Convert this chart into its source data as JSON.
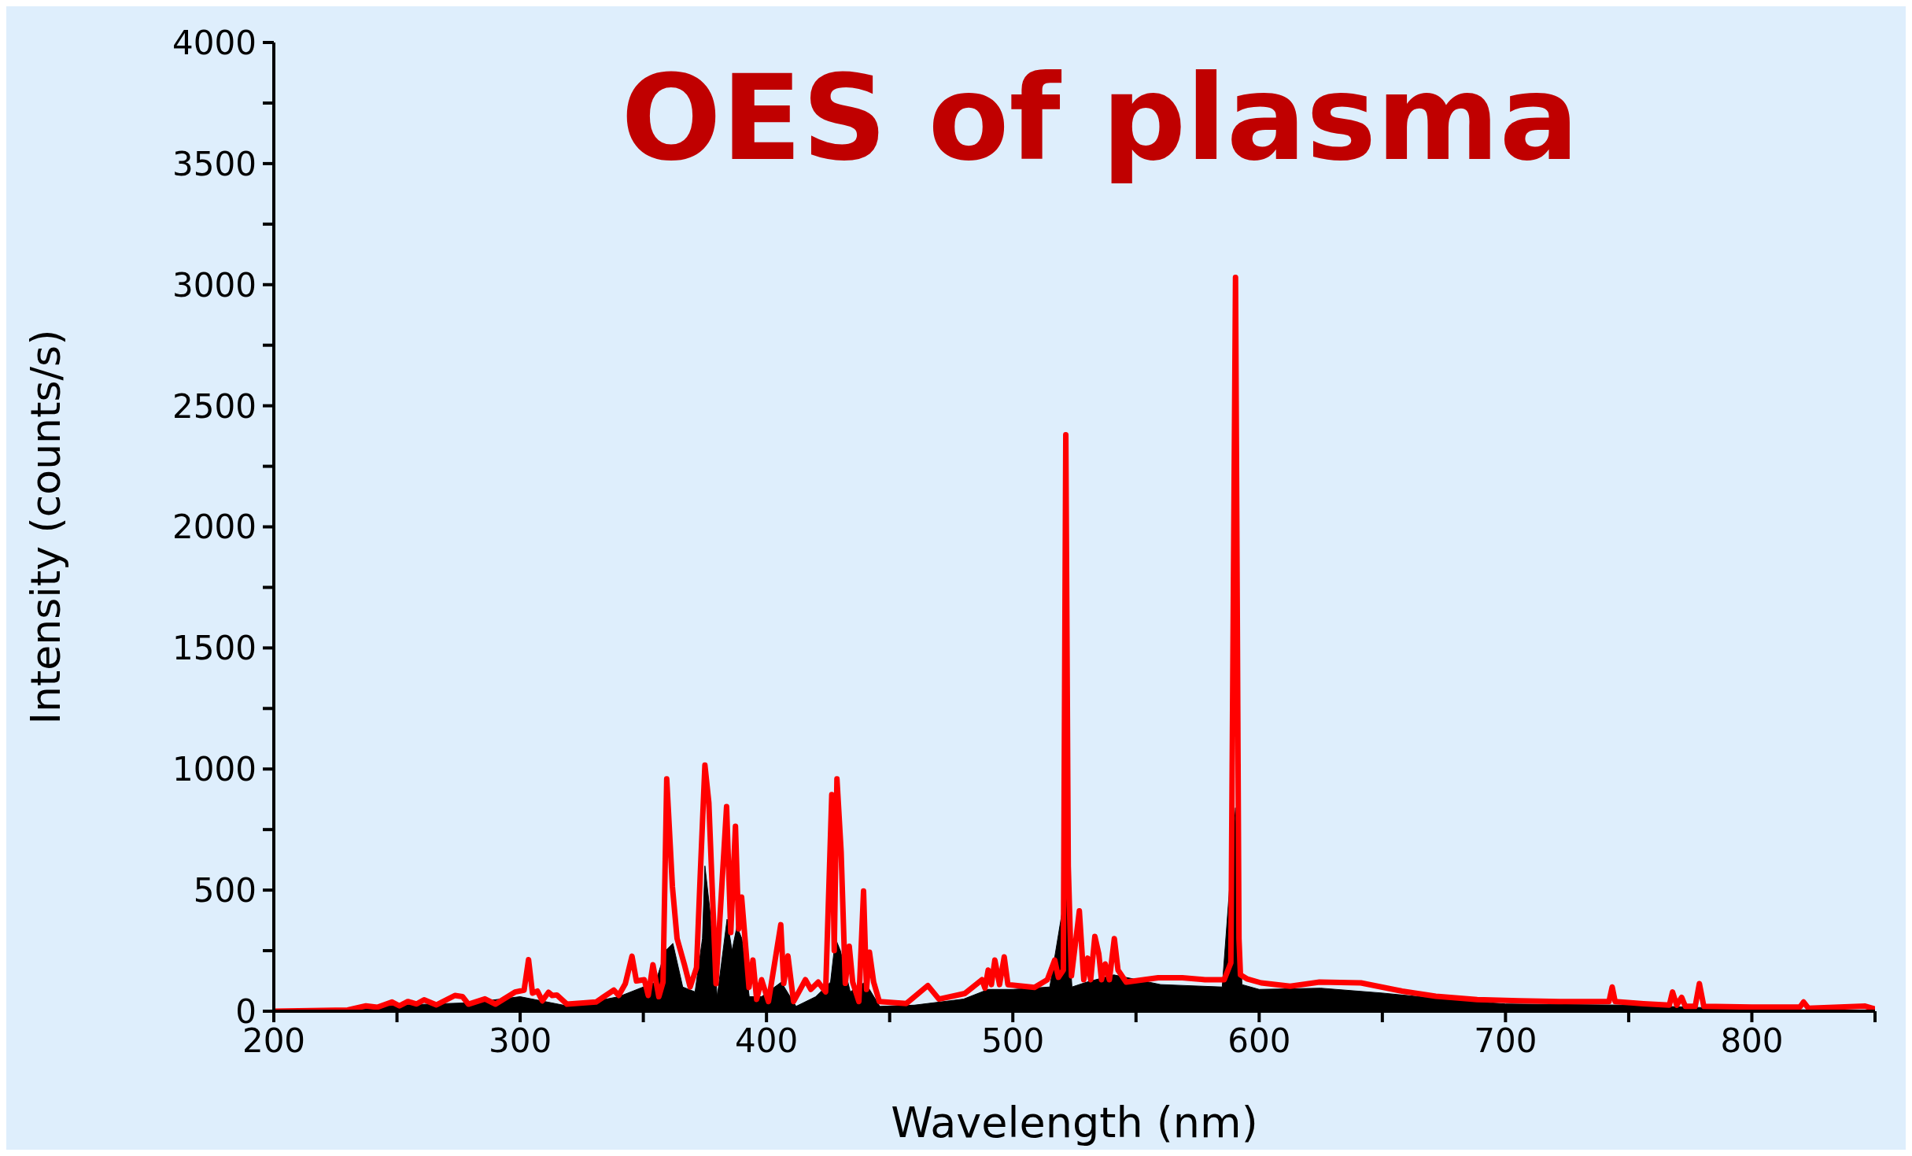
{
  "chart_data": {
    "type": "line",
    "title": "OES of plasma",
    "xlabel": "Wavelength (nm)",
    "ylabel": "Intensity (counts/s)",
    "xlim": [
      200,
      850
    ],
    "ylim": [
      0,
      4000
    ],
    "xticks": [
      200,
      {
        "value": 250,
        "label": null
      },
      300,
      {
        "value": 350,
        "label": null
      },
      400,
      {
        "value": 450,
        "label": null
      },
      500,
      {
        "value": 550,
        "label": null
      },
      600,
      {
        "value": 650,
        "label": null
      },
      700,
      {
        "value": 750,
        "label": null
      },
      800,
      {
        "value": 850,
        "label": null
      }
    ],
    "yticks": [
      0,
      {
        "value": 250,
        "label": null
      },
      500,
      {
        "value": 750,
        "label": null
      },
      1000,
      {
        "value": 1250,
        "label": null
      },
      1500,
      {
        "value": 1750,
        "label": null
      },
      2000,
      {
        "value": 2250,
        "label": null
      },
      2500,
      {
        "value": 2750,
        "label": null
      },
      3000,
      {
        "value": 3250,
        "label": null
      },
      3500,
      {
        "value": 3750,
        "label": null
      },
      4000
    ],
    "grid": false,
    "legend": false,
    "series": [
      {
        "color": "#ff0000",
        "x": [
          200,
          230,
          237.4,
          242,
          248,
          251,
          254.4,
          258,
          261,
          266,
          273.5,
          276.6,
          279,
          285.7,
          290,
          297.9,
          301.6,
          303.4,
          305,
          307,
          309,
          311.5,
          313,
          314.9,
          319,
          330.8,
          338,
          340,
          342.7,
          345.4,
          347.2,
          350.4,
          352,
          353.9,
          356.3,
          358,
          359.5,
          361.8,
          363.7,
          366.6,
          369,
          371.6,
          373,
          375,
          376.6,
          379.5,
          383.8,
          385.5,
          387.4,
          388.7,
          389.9,
          392.9,
          394.5,
          396,
          398,
          400.8,
          405.8,
          407,
          408.7,
          411,
          415.8,
          418,
          421,
          424,
          426.5,
          427.5,
          428.6,
          430.3,
          432,
          433.6,
          435,
          437.5,
          439.4,
          440.6,
          441.8,
          443.5,
          445.8,
          456.8,
          465.5,
          470,
          480.5,
          487.5,
          488.7,
          490,
          491.3,
          492.7,
          494.6,
          496.5,
          498,
          508.8,
          514,
          517,
          518.5,
          520.5,
          521.5,
          522.5,
          523.8,
          527,
          528.8,
          530.4,
          531.6,
          533.3,
          534.9,
          536,
          537.5,
          539.2,
          541.2,
          542.7,
          546,
          559,
          568.8,
          578,
          585.8,
          588.5,
          590.4,
          591.8,
          592.4,
          595,
          600.8,
          612.6,
          624.5,
          641.3,
          658,
          671.7,
          688.5,
          705.4,
          722,
          742,
          743.3,
          744.5,
          756,
          766.5,
          767.8,
          769.5,
          771.5,
          773,
          777,
          778.7,
          780.5,
          800,
          819.5,
          821,
          823,
          846,
          849.6
        ],
        "values": [
          0,
          5,
          22,
          16,
          38,
          22,
          40,
          30,
          47,
          26,
          65,
          60,
          29,
          51,
          29,
          79,
          87,
          213,
          75,
          83,
          43,
          78,
          65,
          67,
          29,
          38,
          87,
          65,
          114,
          227,
          125,
          130,
          65,
          192,
          60,
          120,
          959,
          515,
          300,
          195,
          100,
          180,
          536,
          1016,
          861,
          114,
          845,
          325,
          764,
          340,
          471,
          98,
          211,
          49,
          130,
          40,
          357,
          115,
          228,
          40,
          130,
          90,
          120,
          80,
          894,
          250,
          959,
          658,
          115,
          268,
          120,
          40,
          496,
          90,
          244,
          120,
          40,
          32,
          106,
          50,
          73,
          130,
          95,
          170,
          110,
          211,
          110,
          224,
          110,
          98,
          130,
          211,
          140,
          170,
          2380,
          600,
          146,
          414,
          130,
          219,
          130,
          309,
          236,
          130,
          195,
          130,
          300,
          170,
          120,
          138,
          138,
          130,
          130,
          200,
          3030,
          300,
          150,
          134,
          117,
          103,
          120,
          117,
          83,
          62,
          48,
          43,
          40,
          40,
          100,
          40,
          31,
          25,
          79,
          25,
          57,
          20,
          20,
          114,
          20,
          17,
          17,
          38,
          12,
          21,
          10
        ]
      },
      {
        "type": "area",
        "color": "#000000",
        "x": [
          200,
          230,
          250,
          280,
          300,
          320,
          340,
          355,
          359,
          362,
          366,
          371,
          374,
          375,
          377,
          380,
          384,
          386,
          388,
          390,
          393,
          398,
          406,
          412,
          420,
          426,
          428,
          430,
          434,
          440,
          446,
          460,
          480,
          490,
          500,
          515,
          521.5,
          524,
          530,
          541,
          560,
          585,
          590.4,
          593,
          600,
          625,
          650,
          675,
          700,
          750,
          780,
          800,
          850
        ],
        "values": [
          0,
          3,
          25,
          35,
          60,
          20,
          60,
          120,
          250,
          280,
          100,
          80,
          300,
          600,
          420,
          60,
          380,
          250,
          350,
          300,
          60,
          60,
          120,
          20,
          60,
          120,
          300,
          250,
          80,
          120,
          20,
          25,
          50,
          90,
          90,
          100,
          500,
          100,
          120,
          150,
          110,
          100,
          840,
          110,
          90,
          95,
          75,
          50,
          30,
          25,
          15,
          10,
          0
        ]
      }
    ]
  }
}
